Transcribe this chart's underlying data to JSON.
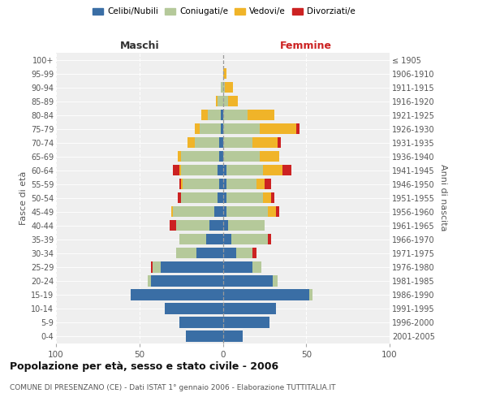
{
  "age_groups": [
    "0-4",
    "5-9",
    "10-14",
    "15-19",
    "20-24",
    "25-29",
    "30-34",
    "35-39",
    "40-44",
    "45-49",
    "50-54",
    "55-59",
    "60-64",
    "65-69",
    "70-74",
    "75-79",
    "80-84",
    "85-89",
    "90-94",
    "95-99",
    "100+"
  ],
  "birth_years": [
    "2001-2005",
    "1996-2000",
    "1991-1995",
    "1986-1990",
    "1981-1985",
    "1976-1980",
    "1971-1975",
    "1966-1970",
    "1961-1965",
    "1956-1960",
    "1951-1955",
    "1946-1950",
    "1941-1945",
    "1936-1940",
    "1931-1935",
    "1926-1930",
    "1921-1925",
    "1916-1920",
    "1911-1915",
    "1906-1910",
    "≤ 1905"
  ],
  "colors": {
    "celibi_nubili": "#3a6ea5",
    "coniugati_e": "#b5c99a",
    "vedovi_e": "#f0b429",
    "divorziati_e": "#cc2222"
  },
  "male_celibi": [
    22,
    26,
    35,
    55,
    43,
    37,
    16,
    10,
    8,
    5,
    3,
    2,
    3,
    2,
    2,
    1,
    1,
    0,
    0,
    0,
    0
  ],
  "male_coniugati": [
    0,
    0,
    0,
    0,
    2,
    5,
    12,
    16,
    20,
    25,
    22,
    22,
    22,
    23,
    15,
    13,
    8,
    3,
    1,
    0,
    0
  ],
  "male_vedovi": [
    0,
    0,
    0,
    0,
    0,
    0,
    0,
    0,
    0,
    1,
    0,
    1,
    1,
    2,
    4,
    3,
    4,
    1,
    0,
    0,
    0
  ],
  "male_divorziati": [
    0,
    0,
    0,
    0,
    0,
    1,
    0,
    0,
    4,
    0,
    2,
    1,
    4,
    0,
    0,
    0,
    0,
    0,
    0,
    0,
    0
  ],
  "female_nubili": [
    12,
    28,
    32,
    52,
    30,
    18,
    8,
    5,
    3,
    2,
    2,
    2,
    2,
    0,
    0,
    0,
    0,
    0,
    0,
    0,
    0
  ],
  "female_coniugate": [
    0,
    0,
    0,
    2,
    3,
    5,
    10,
    22,
    22,
    25,
    22,
    18,
    22,
    22,
    18,
    22,
    15,
    3,
    1,
    0,
    0
  ],
  "female_vedove": [
    0,
    0,
    0,
    0,
    0,
    0,
    0,
    0,
    0,
    5,
    5,
    5,
    12,
    12,
    15,
    22,
    16,
    6,
    5,
    2,
    0
  ],
  "female_divorziate": [
    0,
    0,
    0,
    0,
    0,
    0,
    2,
    2,
    0,
    2,
    2,
    4,
    5,
    0,
    2,
    2,
    0,
    0,
    0,
    0,
    0
  ],
  "xlim": [
    -100,
    100
  ],
  "xticks": [
    -100,
    -50,
    0,
    50,
    100
  ],
  "title": "Popolazione per età, sesso e stato civile - 2006",
  "subtitle": "COMUNE DI PRESENZANO (CE) - Dati ISTAT 1° gennaio 2006 - Elaborazione TUTTITALIA.IT",
  "label_maschi": "Maschi",
  "label_femmine": "Femmine",
  "ylabel_left": "Fasce di età",
  "ylabel_right": "Anni di nascita",
  "legend_labels": [
    "Celibi/Nubili",
    "Coniugati/e",
    "Vedovi/e",
    "Divorziati/e"
  ],
  "background_color": "#ffffff",
  "plot_bg_color": "#efefef"
}
